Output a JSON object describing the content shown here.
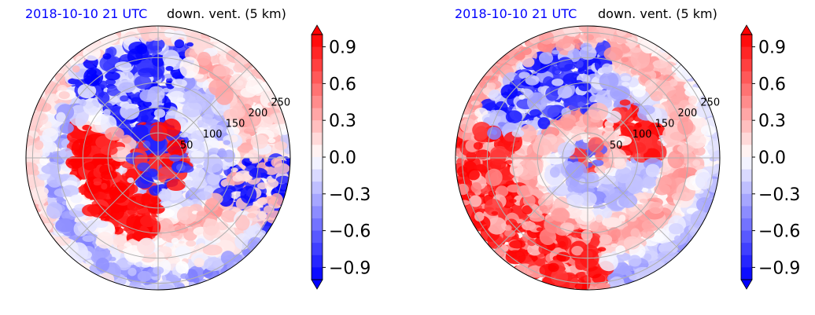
{
  "chart_data": [
    {
      "type": "heatmap",
      "projection": "polar",
      "title_left": "2018-10-10 21 UTC",
      "title_right": "down. vent. (5 km)",
      "radial_ticks": [
        "50",
        "100",
        "150",
        "200",
        "250"
      ],
      "colorbar": {
        "ticks": [
          "0.9",
          "0.6",
          "0.3",
          "0.0",
          "−0.3",
          "−0.6",
          "−0.9"
        ],
        "tick_values": [
          0.9,
          0.6,
          0.3,
          0.0,
          -0.3,
          -0.6,
          -0.9
        ],
        "range": [
          -1.0,
          1.0
        ],
        "extend": "both",
        "colormap": "bwr"
      }
    },
    {
      "type": "heatmap",
      "projection": "polar",
      "title_left": "2018-10-10 21 UTC",
      "title_right": "down. vent. (5 km)",
      "radial_ticks": [
        "50",
        "100",
        "150",
        "200",
        "250"
      ],
      "colorbar": {
        "ticks": [
          "0.9",
          "0.6",
          "0.3",
          "0.0",
          "−0.3",
          "−0.6",
          "−0.9"
        ],
        "tick_values": [
          0.9,
          0.6,
          0.3,
          0.0,
          -0.3,
          -0.6,
          -0.9
        ],
        "range": [
          -1.0,
          1.0
        ],
        "extend": "both",
        "colormap": "bwr"
      }
    }
  ],
  "colors": {
    "positive": "#ff0000",
    "negative": "#0000ff",
    "neutral": "#ffffff",
    "date_label": "#0000ff"
  }
}
